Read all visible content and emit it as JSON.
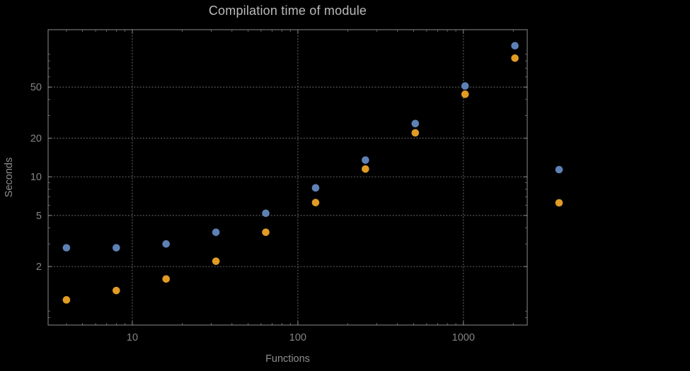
{
  "chart_data": {
    "type": "scatter",
    "title": "Compilation time of module",
    "xlabel": "Functions",
    "ylabel": "Seconds",
    "xscale": "log",
    "yscale": "log",
    "xlim": [
      3.1,
      2430
    ],
    "ylim": [
      0.7,
      140
    ],
    "x_ticks": [
      10,
      100,
      1000
    ],
    "y_ticks": [
      2,
      5,
      10,
      20,
      50
    ],
    "grid": "dotted",
    "x": [
      4,
      8,
      16,
      32,
      64,
      128,
      256,
      512,
      1024,
      2048
    ],
    "series": [
      {
        "name": "blue",
        "color": "#5e81b5",
        "values": [
          2.8,
          2.8,
          3.0,
          3.7,
          5.2,
          8.2,
          13.5,
          26,
          51,
          105
        ]
      },
      {
        "name": "orange",
        "color": "#e19c24",
        "values": [
          1.1,
          1.3,
          1.6,
          2.2,
          3.7,
          6.3,
          11.5,
          22,
          44,
          84
        ]
      }
    ],
    "legend": {
      "marker_colors": [
        "#5e81b5",
        "#e19c24"
      ]
    }
  },
  "colors": {
    "background": "#000000",
    "frame": "#8a8a8a",
    "grid": "#5a5a5a",
    "title_text": "#bababa",
    "axis_label_text": "#8f8f8f",
    "tick_text": "#858585"
  }
}
